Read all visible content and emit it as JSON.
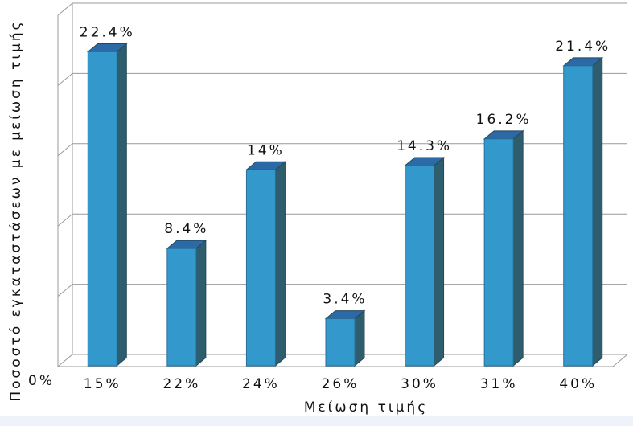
{
  "chart_data": {
    "type": "bar3d",
    "y_label": "Ποσοστό εγκαταστάσεων με μείωση τιμής",
    "x_label": "Μείωση τιμής",
    "categories": [
      "15%",
      "22%",
      "24%",
      "26%",
      "30%",
      "31%",
      "40%"
    ],
    "values": [
      22.4,
      8.4,
      14,
      3.4,
      14.3,
      16.2,
      21.4
    ],
    "value_labels": [
      "22.4%",
      "8.4%",
      "14%",
      "3.4%",
      "14.3%",
      "16.2%",
      "21.4%"
    ],
    "color": "#3399cc",
    "ylim": [
      0,
      25
    ],
    "yticks": [
      {
        "value": 0,
        "label": "0%"
      }
    ],
    "ygrid": [
      5,
      10,
      15,
      20,
      25
    ]
  }
}
